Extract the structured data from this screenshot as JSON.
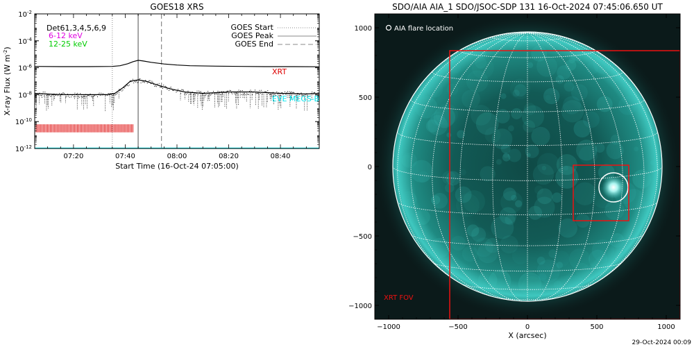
{
  "chart_data": [
    {
      "type": "line",
      "title": "GOES18 XRS",
      "xlabel": "Start Time (16-Oct-24 07:05:00)",
      "ylabel_text": "X-ray Flux (W m",
      "ylabel_exp": "-2",
      "ylabel_close": ")",
      "x_range_minutes_after_0705": [
        0,
        110
      ],
      "x_tick_labels": [
        "07:20",
        "07:40",
        "08:00",
        "08:20",
        "08:40"
      ],
      "x_tick_minutes": [
        15,
        35,
        55,
        75,
        95
      ],
      "y_scale": "log",
      "y_range_exp": [
        -12,
        -2
      ],
      "y_tick_base": "10",
      "y_tick_exps": [
        "-12",
        "-10",
        "-8",
        "-6",
        "-4",
        "-2"
      ],
      "labels": {
        "det": "Det61,3,4,5,6,9",
        "band1": "6-12 keV",
        "band2": "12-25 keV",
        "xrt": "XRT",
        "eve": "EVE MEGS-B"
      },
      "legend": {
        "placement": "top-right",
        "start": "GOES Start",
        "peak": "GOES Peak",
        "end": "GOES End"
      },
      "events_minutes": {
        "start": 30,
        "peak": 40,
        "end": 49
      },
      "xrt_marks_range_minutes": [
        0,
        38
      ],
      "series": [
        {
          "name": "",
          "x": [
            0,
            10,
            20,
            30,
            33,
            36,
            38,
            40,
            42,
            45,
            50,
            55,
            60,
            70,
            80,
            90,
            100,
            110
          ],
          "y_log": [
            -5.9,
            -5.92,
            -5.92,
            -5.9,
            -5.85,
            -5.7,
            -5.55,
            -5.45,
            -5.5,
            -5.6,
            -5.72,
            -5.8,
            -5.85,
            -5.88,
            -5.9,
            -5.92,
            -5.92,
            -5.93
          ]
        },
        {
          "name": "",
          "x": [
            0,
            10,
            20,
            28,
            31,
            34,
            37,
            40,
            43,
            47,
            52,
            58,
            65,
            75,
            85,
            95,
            105,
            110
          ],
          "y_log": [
            -7.9,
            -8.0,
            -8.0,
            -8.0,
            -7.9,
            -7.5,
            -7.0,
            -6.9,
            -7.0,
            -7.25,
            -7.55,
            -7.8,
            -7.9,
            -7.8,
            -7.8,
            -7.9,
            -7.95,
            -7.9
          ]
        },
        {
          "name": "",
          "x": [
            0,
            110
          ],
          "y_log": [
            -12.0,
            -12.0
          ]
        }
      ],
      "colors": {
        "line": "#000000",
        "band1": "#e000e0",
        "band2": "#00cc00",
        "xrt": "#dd0000",
        "eve": "#00e5ee",
        "event": "#888888"
      }
    },
    {
      "type": "image",
      "title": "SDO/AIA AIA_1 SDO/JSOC-SDP 131 16-Oct-2024 07:45:06.650 UT",
      "xlabel": "X (arcsec)",
      "ylabel": "",
      "x_range": [
        -1100,
        1100
      ],
      "y_range": [
        -1100,
        1100
      ],
      "x_ticks": [
        -1000,
        -500,
        0,
        500,
        1000
      ],
      "y_ticks": [
        -1000,
        -500,
        0,
        500,
        1000
      ],
      "x_tick_labels": [
        "−1000",
        "−500",
        "0",
        "500",
        "1000"
      ],
      "y_tick_labels": [
        "−1000",
        "−500",
        "0",
        "500",
        "1000"
      ],
      "solar_radius_arcsec": 970,
      "flare_label": "AIA flare location",
      "flare_center": [
        620,
        -150
      ],
      "flare_radius_arcsec": 105,
      "xrt_label": "XRT FOV",
      "xrt_fov_box": {
        "x0": -560,
        "x1": 1100,
        "y0": -1100,
        "y1": 835
      },
      "zoom_box": {
        "x0": 330,
        "x1": 730,
        "y0": -390,
        "y1": 10
      },
      "colors": {
        "disk": "#3fc8c0",
        "box": "#ee1111",
        "grid": "#ffffff",
        "text": "#ffffff"
      }
    }
  ],
  "footer": {
    "timestamp": "29-Oct-2024 00:09"
  }
}
